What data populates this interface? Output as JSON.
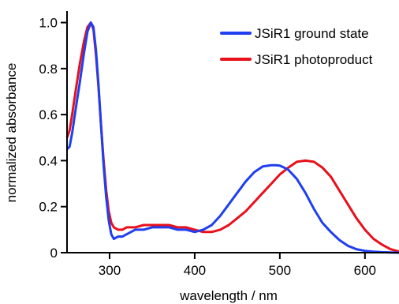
{
  "chart_data": {
    "type": "line",
    "xlabel": "wavelength / nm",
    "ylabel": "normalized absorbance",
    "xlim": [
      250,
      640
    ],
    "ylim": [
      0,
      1.05
    ],
    "xticks": [
      300,
      400,
      500,
      600
    ],
    "yticks": [
      0,
      0.2,
      0.4,
      0.6,
      0.8,
      1.0
    ],
    "xtick_labels": [
      "300",
      "400",
      "500",
      "600"
    ],
    "ytick_labels": [
      "0",
      "0.2",
      "0.4",
      "0.6",
      "0.8",
      "1.0"
    ],
    "grid": false,
    "legend_position": "top-right",
    "series": [
      {
        "name": "JSiR1 ground state",
        "color": "#1f3ff0",
        "x": [
          250,
          253,
          256,
          260,
          265,
          270,
          274,
          278,
          281,
          284,
          287,
          290,
          293,
          296,
          299,
          302,
          305,
          310,
          315,
          320,
          330,
          340,
          350,
          360,
          370,
          380,
          390,
          400,
          410,
          420,
          430,
          440,
          450,
          460,
          470,
          480,
          490,
          495,
          500,
          505,
          510,
          520,
          530,
          540,
          550,
          560,
          570,
          580,
          590,
          600,
          610,
          620,
          630,
          640
        ],
        "y": [
          0.45,
          0.46,
          0.52,
          0.62,
          0.74,
          0.87,
          0.96,
          1.0,
          0.98,
          0.88,
          0.73,
          0.55,
          0.38,
          0.24,
          0.14,
          0.08,
          0.06,
          0.07,
          0.07,
          0.08,
          0.1,
          0.1,
          0.11,
          0.11,
          0.11,
          0.1,
          0.1,
          0.09,
          0.1,
          0.12,
          0.16,
          0.21,
          0.26,
          0.31,
          0.35,
          0.375,
          0.38,
          0.38,
          0.378,
          0.37,
          0.36,
          0.32,
          0.26,
          0.19,
          0.13,
          0.09,
          0.055,
          0.03,
          0.015,
          0.008,
          0.004,
          0.002,
          0.001,
          0.0
        ]
      },
      {
        "name": "JSiR1 photoproduct",
        "color": "#e8101a",
        "x": [
          250,
          253,
          256,
          260,
          265,
          270,
          274,
          278,
          281,
          284,
          287,
          290,
          293,
          296,
          299,
          302,
          305,
          310,
          315,
          320,
          330,
          340,
          350,
          360,
          370,
          380,
          390,
          400,
          410,
          420,
          430,
          440,
          450,
          460,
          470,
          480,
          490,
          500,
          510,
          520,
          530,
          540,
          550,
          560,
          570,
          580,
          590,
          600,
          610,
          620,
          630,
          640
        ],
        "y": [
          0.5,
          0.53,
          0.6,
          0.7,
          0.82,
          0.92,
          0.98,
          1.0,
          0.97,
          0.86,
          0.72,
          0.55,
          0.4,
          0.27,
          0.18,
          0.13,
          0.11,
          0.1,
          0.1,
          0.11,
          0.11,
          0.12,
          0.12,
          0.12,
          0.12,
          0.11,
          0.11,
          0.1,
          0.09,
          0.09,
          0.1,
          0.12,
          0.15,
          0.18,
          0.22,
          0.26,
          0.3,
          0.34,
          0.37,
          0.395,
          0.4,
          0.395,
          0.37,
          0.33,
          0.27,
          0.21,
          0.15,
          0.1,
          0.06,
          0.035,
          0.015,
          0.005
        ]
      }
    ]
  }
}
